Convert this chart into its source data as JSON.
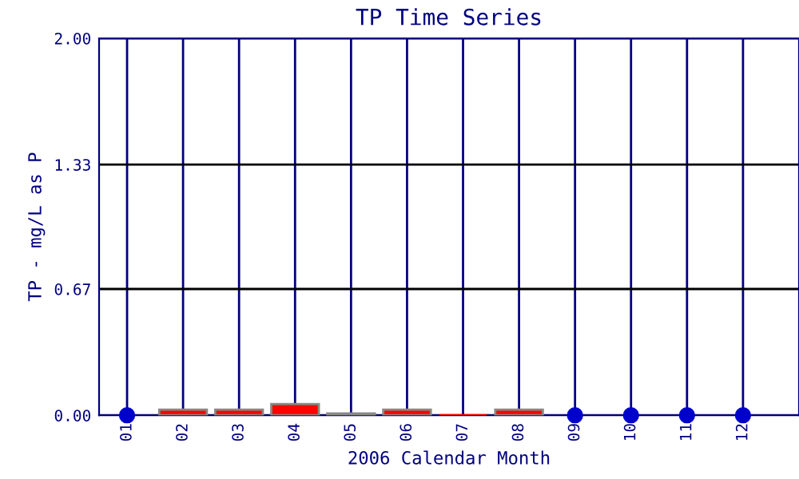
{
  "chart_data": {
    "type": "bar",
    "title": "TP Time Series",
    "xlabel": "2006 Calendar Month",
    "ylabel": "TP - mg/L as P",
    "categories": [
      "01",
      "02",
      "03",
      "04",
      "05",
      "06",
      "07",
      "08",
      "09",
      "10",
      "11",
      "12"
    ],
    "series": [
      {
        "color": "#ff0000",
        "values": [
          null,
          0.03,
          0.03,
          0.06,
          0.01,
          0.03,
          0.0,
          0.03,
          null,
          null,
          null,
          null
        ]
      },
      {
        "type": "scatter",
        "color": "#0000cc",
        "marker": "circle",
        "x": [
          "01",
          "09",
          "10",
          "11",
          "12"
        ],
        "values": [
          0,
          0,
          0,
          0,
          0
        ]
      }
    ],
    "ylim": [
      0,
      2.0
    ],
    "yticks": [
      {
        "value": 0,
        "label": "0.00"
      },
      {
        "value": 0.67,
        "label": "0.67"
      },
      {
        "value": 1.33,
        "label": "1.33"
      },
      {
        "value": 2.0,
        "label": "2.00"
      }
    ],
    "grid": true
  }
}
